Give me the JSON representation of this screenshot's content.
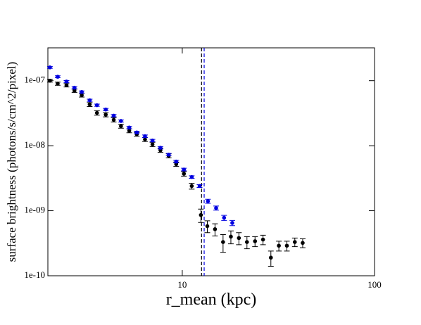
{
  "chart_data": {
    "type": "scatter",
    "x_label": "r_mean (kpc)",
    "y_label": "surface brightness (photons/s/cm^2/pixel)",
    "xlog": true,
    "ylog": true,
    "xlim": [
      2,
      100
    ],
    "ylim": [
      1e-10,
      3.2e-07
    ],
    "xticks": [
      10,
      100
    ],
    "yticks": [
      {
        "value": 1e-10,
        "label": "1e-10"
      },
      {
        "value": 1e-09,
        "label": "1e-09"
      },
      {
        "value": 1e-08,
        "label": "1e-08"
      },
      {
        "value": 1e-07,
        "label": "1e-07"
      }
    ],
    "series": [
      {
        "color": "#000000",
        "x": [
          2.05,
          2.25,
          2.5,
          2.75,
          3.0,
          3.3,
          3.6,
          4.0,
          4.4,
          4.8,
          5.3,
          5.8,
          6.4,
          7.0,
          7.7,
          8.5,
          9.3,
          10.2,
          11.2,
          12.5,
          13.5,
          14.8,
          16.3,
          17.9,
          19.7,
          21.7,
          23.9,
          26.3,
          28.9,
          31.8,
          35.0,
          38.5,
          42.3
        ],
        "values": [
          1e-07,
          9e-08,
          8.5e-08,
          7e-08,
          6e-08,
          4.3e-08,
          3.2e-08,
          3e-08,
          2.5e-08,
          2e-08,
          1.7e-08,
          1.5e-08,
          1.25e-08,
          1.05e-08,
          8.5e-09,
          7e-09,
          5.2e-09,
          3.7e-09,
          2.4e-09,
          8.6e-10,
          5.8e-10,
          5.2e-10,
          3.3e-10,
          4e-10,
          3.8e-10,
          3.3e-10,
          3.4e-10,
          3.6e-10,
          1.9e-10,
          2.9e-10,
          2.9e-10,
          3.3e-10,
          3.2e-10
        ],
        "errors": [
          5e-09,
          5e-09,
          5e-09,
          4e-09,
          4e-09,
          3e-09,
          2.5e-09,
          2.2e-09,
          1.8e-09,
          1.4e-09,
          1.2e-09,
          1e-09,
          9e-10,
          8e-10,
          6e-10,
          5e-10,
          4e-10,
          3e-10,
          2.5e-10,
          2e-10,
          1.2e-10,
          1.1e-10,
          1e-10,
          9e-11,
          8e-11,
          7e-11,
          6e-11,
          6e-11,
          5e-11,
          5e-11,
          5e-11,
          5e-11,
          5e-11
        ]
      },
      {
        "color": "#0000e0",
        "x": [
          2.05,
          2.25,
          2.5,
          2.75,
          3.0,
          3.3,
          3.6,
          4.0,
          4.4,
          4.8,
          5.3,
          5.8,
          6.4,
          7.0,
          7.7,
          8.5,
          9.3,
          10.2,
          11.2,
          12.3,
          13.6,
          15.0,
          16.5,
          18.2
        ],
        "values": [
          1.6e-07,
          1.15e-07,
          9.7e-08,
          7.8e-08,
          6.7e-08,
          5e-08,
          4.2e-08,
          3.6e-08,
          2.9e-08,
          2.4e-08,
          1.9e-08,
          1.6e-08,
          1.4e-08,
          1.2e-08,
          9.3e-09,
          7.3e-09,
          5.7e-09,
          4.3e-09,
          3.3e-09,
          2.4e-09,
          1.4e-09,
          1.1e-09,
          7.8e-10,
          6.5e-10
        ],
        "errors": [
          5e-09,
          4e-09,
          3.5e-09,
          3e-09,
          2.5e-09,
          2e-09,
          1.6e-09,
          1.4e-09,
          1.1e-09,
          9e-10,
          8e-10,
          7e-10,
          6e-10,
          5e-10,
          4e-10,
          3e-10,
          2.5e-10,
          2e-10,
          1.5e-10,
          1.2e-10,
          1e-10,
          8e-11,
          7e-11,
          6e-11
        ]
      }
    ],
    "vlines": [
      {
        "x": 12.6,
        "color": "#000000"
      },
      {
        "x": 13.0,
        "color": "#0000e0"
      }
    ]
  }
}
